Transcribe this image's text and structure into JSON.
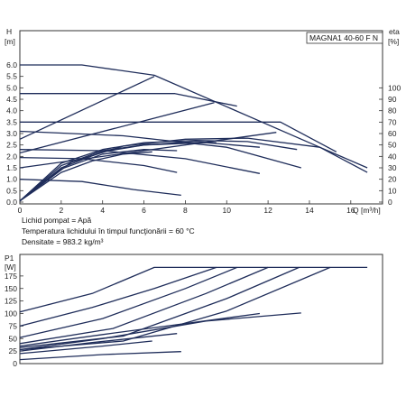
{
  "chart_data": [
    {
      "type": "line",
      "model_label": "MAGNA1 40-60 F N",
      "y_axis": {
        "symbol": "H",
        "unit": "[m]",
        "ylim": [
          0,
          6.5
        ],
        "ticks": [
          "0.0",
          "0.5",
          "1.0",
          "1.5",
          "2.0",
          "2.5",
          "3.0",
          "3.5",
          "4.0",
          "4.5",
          "5.0",
          "5.5",
          "6.0"
        ]
      },
      "y2_axis": {
        "symbol": "eta",
        "unit": "[%]",
        "ylim": [
          0,
          130
        ],
        "ticks": [
          "0",
          "10",
          "20",
          "30",
          "40",
          "50",
          "60",
          "70",
          "80",
          "90",
          "100"
        ]
      },
      "x_axis": {
        "symbol": "Q",
        "unit": "[m³/h]",
        "xlim": [
          0,
          17.5
        ],
        "ticks": [
          "0",
          "2",
          "4",
          "6",
          "8",
          "10",
          "12",
          "14",
          "16"
        ]
      },
      "grid": false,
      "series": [
        {
          "values": [
            [
              0,
              6.0
            ],
            [
              3,
              6.0
            ],
            [
              6.5,
              5.55
            ],
            [
              14.5,
              2.4
            ],
            [
              16.8,
              1.5
            ]
          ]
        },
        {
          "values": [
            [
              0,
              4.75
            ],
            [
              7.5,
              4.75
            ],
            [
              10.5,
              4.2
            ]
          ]
        },
        {
          "values": [
            [
              0,
              3.5
            ],
            [
              12.6,
              3.5
            ],
            [
              15.3,
              2.2
            ]
          ]
        },
        {
          "values": [
            [
              0,
              2.75
            ],
            [
              6.5,
              5.5
            ]
          ]
        },
        {
          "values": [
            [
              0,
              2.15
            ],
            [
              9.4,
              4.35
            ]
          ]
        },
        {
          "values": [
            [
              0,
              1.5
            ],
            [
              12.4,
              3.05
            ]
          ]
        },
        {
          "values": [
            [
              0,
              3.1
            ],
            [
              5,
              2.9
            ],
            [
              10,
              2.4
            ],
            [
              13.6,
              1.5
            ]
          ]
        },
        {
          "values": [
            [
              0,
              2.3
            ],
            [
              4,
              2.25
            ],
            [
              8,
              1.9
            ],
            [
              11.6,
              1.25
            ]
          ]
        },
        {
          "values": [
            [
              0,
              1.95
            ],
            [
              3,
              1.9
            ],
            [
              6,
              1.6
            ],
            [
              7.6,
              1.3
            ]
          ]
        },
        {
          "values": [
            [
              0,
              1.0
            ],
            [
              3,
              0.9
            ],
            [
              5.5,
              0.55
            ],
            [
              7.8,
              0.3
            ]
          ]
        },
        {
          "values": [
            [
              0,
              0.05
            ],
            [
              2.5,
              1.75
            ],
            [
              5,
              2.45
            ],
            [
              8,
              2.75
            ],
            [
              11,
              2.8
            ],
            [
              14.5,
              2.4
            ],
            [
              16.8,
              1.3
            ]
          ]
        },
        {
          "values": [
            [
              0,
              0.05
            ],
            [
              2,
              1.7
            ],
            [
              4,
              2.3
            ],
            [
              6,
              2.6
            ],
            [
              8.5,
              2.7
            ],
            [
              11,
              2.65
            ],
            [
              13.4,
              2.3
            ]
          ]
        },
        {
          "values": [
            [
              0,
              0.05
            ],
            [
              2,
              1.6
            ],
            [
              4,
              2.25
            ],
            [
              6,
              2.5
            ],
            [
              9,
              2.6
            ],
            [
              11.6,
              2.4
            ]
          ]
        },
        {
          "values": [
            [
              0,
              0.05
            ],
            [
              2,
              1.5
            ],
            [
              4,
              2.2
            ],
            [
              6,
              2.5
            ],
            [
              8.5,
              2.65
            ],
            [
              9.5,
              2.6
            ]
          ]
        },
        {
          "values": [
            [
              0,
              0.05
            ],
            [
              2,
              1.45
            ],
            [
              4,
              2.1
            ],
            [
              6,
              2.3
            ],
            [
              7.6,
              2.25
            ]
          ]
        },
        {
          "values": [
            [
              0,
              0.05
            ],
            [
              2,
              1.3
            ],
            [
              3.5,
              1.8
            ],
            [
              5,
              2.1
            ],
            [
              6.4,
              2.2
            ]
          ]
        }
      ],
      "conditions": [
        "Lichid pompat = Apă",
        "Temperatura lichidului în timpul funcţionării = 60 °C",
        "Densitate = 983.2 kg/m³"
      ]
    },
    {
      "type": "line",
      "y_axis": {
        "symbol": "P1",
        "unit": "[W]",
        "ylim": [
          0,
          200
        ],
        "ticks": [
          "0",
          "25",
          "50",
          "75",
          "100",
          "125",
          "150",
          "175"
        ]
      },
      "x_axis": {
        "xlim": [
          0,
          17.5
        ]
      },
      "grid": false,
      "series": [
        {
          "values": [
            [
              0,
              103
            ],
            [
              3.5,
              140
            ],
            [
              6.5,
              192
            ],
            [
              16.8,
              192
            ]
          ]
        },
        {
          "values": [
            [
              0,
              75
            ],
            [
              3.5,
              112
            ],
            [
              6.5,
              150
            ],
            [
              9.5,
              192
            ]
          ]
        },
        {
          "values": [
            [
              0,
              52
            ],
            [
              4,
              90
            ],
            [
              8,
              150
            ],
            [
              10.5,
              192
            ]
          ]
        },
        {
          "values": [
            [
              0,
              40
            ],
            [
              4.5,
              70
            ],
            [
              9,
              140
            ],
            [
              12,
              192
            ]
          ]
        },
        {
          "values": [
            [
              0,
              32
            ],
            [
              5,
              55
            ],
            [
              10,
              130
            ],
            [
              13.5,
              192
            ]
          ]
        },
        {
          "values": [
            [
              0,
              28
            ],
            [
              5,
              45
            ],
            [
              10,
              105
            ],
            [
              15,
              192
            ]
          ]
        },
        {
          "values": [
            [
              0,
              35
            ],
            [
              4,
              58
            ],
            [
              8,
              80
            ],
            [
              11.6,
              100
            ]
          ]
        },
        {
          "values": [
            [
              0,
              28
            ],
            [
              4,
              50
            ],
            [
              9,
              85
            ],
            [
              13.6,
              101
            ]
          ]
        },
        {
          "values": [
            [
              0,
              25
            ],
            [
              3.5,
              42
            ],
            [
              7.6,
              60
            ]
          ]
        },
        {
          "values": [
            [
              0,
              20
            ],
            [
              4,
              35
            ],
            [
              6.4,
              45
            ]
          ]
        },
        {
          "values": [
            [
              0,
              8
            ],
            [
              4,
              18
            ],
            [
              7.8,
              24
            ]
          ]
        }
      ]
    }
  ]
}
